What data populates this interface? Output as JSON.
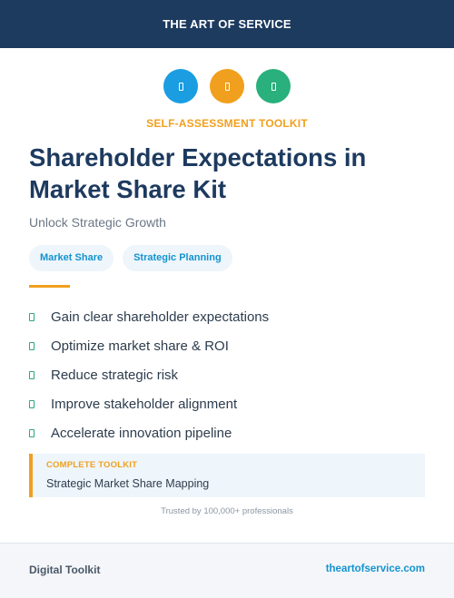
{
  "header": {
    "brand": "THE ART OF SERVICE"
  },
  "icons": [
    {
      "name": "blue-badge-icon",
      "color": "#1a9de1"
    },
    {
      "name": "orange-badge-icon",
      "color": "#f0a01e"
    },
    {
      "name": "green-badge-icon",
      "color": "#2ab07c"
    }
  ],
  "kicker": "SELF-ASSESSMENT TOOLKIT",
  "title": "Shareholder Expectations in Market Share Kit",
  "subtitle": "Unlock Strategic Growth",
  "tags": [
    "Market Share",
    "Strategic Planning"
  ],
  "benefits": [
    "Gain clear shareholder expectations",
    "Optimize market share & ROI",
    "Reduce strategic risk",
    "Improve stakeholder alignment",
    "Accelerate innovation pipeline"
  ],
  "callout": {
    "label": "COMPLETE TOOLKIT",
    "value": "Strategic Market Share Mapping"
  },
  "trusted": "Trusted by 100,000+ professionals",
  "footer": {
    "left": "Digital Toolkit",
    "right": "theartofservice.com"
  },
  "colors": {
    "navy": "#1d3a5f",
    "accent": "#f0a01e",
    "link": "#1493cf",
    "check": "#2aa879"
  }
}
